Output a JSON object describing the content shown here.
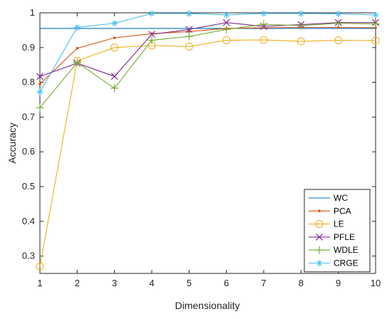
{
  "chart_data": {
    "type": "line",
    "title": "",
    "xlabel": "Dimensionality",
    "ylabel": "Accuracy",
    "xlim": [
      1,
      10
    ],
    "ylim": [
      0.25,
      1
    ],
    "x": [
      1,
      2,
      3,
      4,
      5,
      6,
      7,
      8,
      9,
      10
    ],
    "x_ticks": [
      "1",
      "2",
      "3",
      "4",
      "5",
      "6",
      "7",
      "8",
      "9",
      "10"
    ],
    "y_ticks": [
      "0.3",
      "0.4",
      "0.5",
      "0.6",
      "0.7",
      "0.8",
      "0.9",
      "1"
    ],
    "grid": false,
    "legend_position": "bottom-right",
    "series": [
      {
        "name": "WC",
        "color": "#0072BD",
        "marker": "none",
        "values": [
          0.955,
          0.955,
          0.955,
          0.955,
          0.955,
          0.955,
          0.955,
          0.955,
          0.955,
          0.955
        ]
      },
      {
        "name": "PCA",
        "color": "#D95319",
        "marker": "dot",
        "values": [
          0.795,
          0.898,
          0.928,
          0.94,
          0.946,
          0.955,
          0.957,
          0.958,
          0.958,
          0.957
        ]
      },
      {
        "name": "LE",
        "color": "#EDB120",
        "marker": "circle",
        "values": [
          0.27,
          0.862,
          0.9,
          0.906,
          0.903,
          0.921,
          0.922,
          0.918,
          0.921,
          0.92
        ]
      },
      {
        "name": "PFLE",
        "color": "#7E2F8E",
        "marker": "x",
        "values": [
          0.817,
          0.855,
          0.817,
          0.938,
          0.952,
          0.972,
          0.961,
          0.966,
          0.972,
          0.972
        ]
      },
      {
        "name": "WDLE",
        "color": "#77AC30",
        "marker": "plus",
        "values": [
          0.727,
          0.857,
          0.783,
          0.921,
          0.932,
          0.952,
          0.967,
          0.963,
          0.97,
          0.968
        ]
      },
      {
        "name": "CRGE",
        "color": "#4DBEEE",
        "marker": "star",
        "values": [
          0.772,
          0.958,
          0.97,
          0.998,
          0.998,
          0.994,
          0.998,
          0.998,
          0.997,
          0.994
        ]
      }
    ]
  }
}
